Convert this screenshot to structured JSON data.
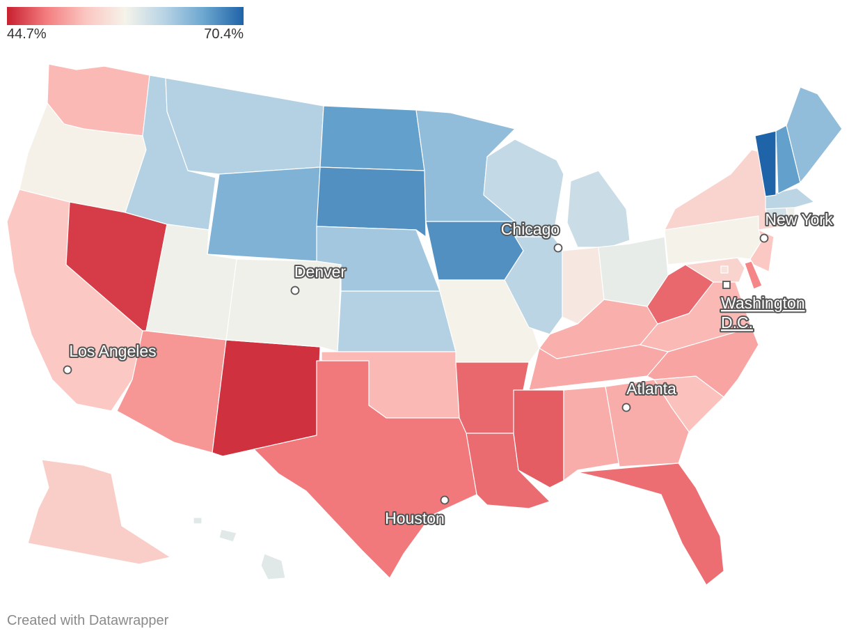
{
  "legend": {
    "min_label": "44.7%",
    "max_label": "70.4%",
    "min_value": 44.7,
    "max_value": 70.4,
    "gradient_colors": [
      "#c8202f",
      "#f37d7f",
      "#fbc6c1",
      "#f5f3ea",
      "#b7d3e5",
      "#6ba6cf",
      "#1f63a8"
    ]
  },
  "map": {
    "type": "choropleth",
    "region": "United States",
    "state_values": {
      "WA": 52.5,
      "OR": 57.3,
      "CA": 53.5,
      "NV": 46.0,
      "ID": 62.0,
      "MT": 62.0,
      "WY": 65.0,
      "UT": 58.0,
      "AZ": 50.5,
      "NM": 45.5,
      "CO": 58.0,
      "ND": 66.5,
      "SD": 67.5,
      "NE": 63.0,
      "KS": 62.0,
      "OK": 52.5,
      "TX": 48.8,
      "MN": 64.0,
      "IA": 67.5,
      "MO": 57.5,
      "AR": 48.0,
      "LA": 48.2,
      "WI": 61.0,
      "IL": 61.5,
      "MI": 60.5,
      "IN": 56.5,
      "OH": 58.5,
      "KY": 52.0,
      "TN": 51.5,
      "MS": 47.5,
      "AL": 51.8,
      "GA": 51.8,
      "FL": 48.3,
      "SC": 53.0,
      "NC": 51.3,
      "VA": 52.5,
      "WV": 48.0,
      "MD": 54.5,
      "DE": 49.5,
      "PA": 57.5,
      "NJ": 53.5,
      "NY": 54.5,
      "CT": 60.0,
      "RI": 58.0,
      "MA": 61.5,
      "VT": 70.4,
      "NH": 66.5,
      "ME": 64.0,
      "AK": 54.0,
      "HI": 59.0,
      "DC": 56.0
    },
    "cities": [
      {
        "name": "Chicago",
        "marker": "circle"
      },
      {
        "name": "New York",
        "marker": "circle"
      },
      {
        "name": "Denver",
        "marker": "circle"
      },
      {
        "name": "Washington D.C.",
        "line1": "Washington",
        "line2": "D.C.",
        "marker": "square"
      },
      {
        "name": "Los Angeles",
        "marker": "circle"
      },
      {
        "name": "Atlanta",
        "marker": "circle"
      },
      {
        "name": "Houston",
        "marker": "circle"
      }
    ]
  },
  "footer": {
    "credit": "Created with Datawrapper"
  }
}
